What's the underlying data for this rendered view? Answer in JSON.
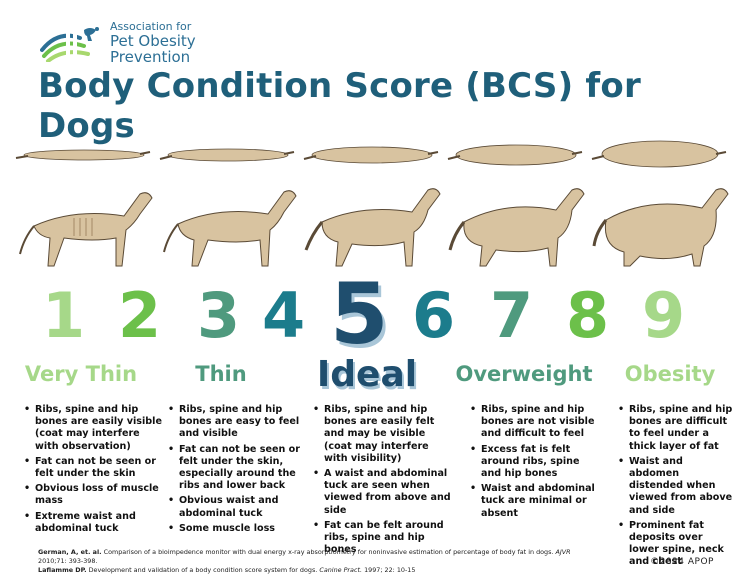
{
  "logo": {
    "line1": "Association for",
    "line2": "Pet Obesity",
    "line3": "Prevention",
    "colors": {
      "blue": "#2c6f95",
      "green": "#6cc04a",
      "light_green": "#a8d86e"
    }
  },
  "title": "Body Condition Score (BCS) for Dogs",
  "scores": [
    {
      "value": "1",
      "color": "#a6d889"
    },
    {
      "value": "2",
      "color": "#6cc04a"
    },
    {
      "value": "3",
      "color": "#4f9a7e"
    },
    {
      "value": "4",
      "color": "#1c7c8c"
    },
    {
      "value": "5",
      "color": "#1f4e6e"
    },
    {
      "value": "6",
      "color": "#1c7c8c"
    },
    {
      "value": "7",
      "color": "#4f9a7e"
    },
    {
      "value": "8",
      "color": "#6cc04a"
    },
    {
      "value": "9",
      "color": "#a6d889"
    }
  ],
  "categories": [
    {
      "label": "Very Thin",
      "color": "#a6d889",
      "bullets": [
        "Ribs, spine and hip bones are easily visible (coat may interfere with observation)",
        "Fat can not be seen or felt under the skin",
        "Obvious loss of muscle mass",
        "Extreme waist and abdominal tuck"
      ]
    },
    {
      "label": "Thin",
      "color": "#4f9a7e",
      "bullets": [
        "Ribs, spine and hip bones are easy to feel and visible",
        "Fat can not be seen or felt under the skin, especially around the ribs and lower back",
        "Obvious waist and abdominal tuck",
        "Some muscle loss"
      ]
    },
    {
      "label": "Ideal",
      "color": "#1f4e6e",
      "bullets": [
        "Ribs, spine and hip bones are easily felt and may be visible (coat may interfere with visibility)",
        "A waist and abdominal tuck are seen when viewed from above and side",
        "Fat can be felt around ribs, spine and hip bones"
      ]
    },
    {
      "label": "Overweight",
      "color": "#4f9a7e",
      "bullets": [
        "Ribs, spine and hip bones are not visible and difficult to feel",
        "Excess fat is felt around ribs, spine and hip bones",
        "Waist and abdominal tuck are minimal or absent"
      ]
    },
    {
      "label": "Obesity",
      "color": "#a6d889",
      "bullets": [
        "Ribs, spine and hip bones are difficult to feel under a thick layer of fat",
        "Waist and abdomen distended when viewed from above and side",
        "Prominent fat deposits over lower spine, neck and chest"
      ]
    }
  ],
  "references": [
    {
      "authors": "German, A, et. al.",
      "text": "Comparison of a bioimpedence monitor with dual energy x-ray absorptiometry for noninvasive estimation of percentage of body fat in dogs.",
      "journal": "AJVR",
      "details": "2010;71: 393-398."
    },
    {
      "authors": "Laflamme DP.",
      "text": "Development and validation of a body condition score system for dogs.",
      "journal": "Canine Pract.",
      "details": "1997; 22: 10-15"
    }
  ],
  "copyright": "©2024 APOP",
  "dog_colors": {
    "coat": "#d8c3a0",
    "shade": "#a48a66",
    "outline": "#5a4a36"
  }
}
